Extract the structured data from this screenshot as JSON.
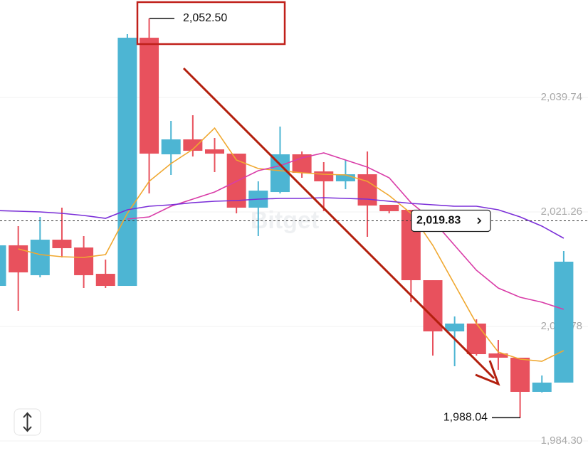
{
  "chart_data": {
    "type": "candlestick",
    "watermark": "Bitget",
    "up_color": "#4db5d3",
    "down_color": "#e8515d",
    "ylim": [
      1982.92,
      2055.47
    ],
    "yticks": [
      {
        "value": 2039.74,
        "label": "2,039.74"
      },
      {
        "value": 2021.26,
        "label": "2,021.26"
      },
      {
        "value": 2002.78,
        "label": "2,002.78"
      },
      {
        "value": 1984.3,
        "label": "1,984.30"
      }
    ],
    "grid": true,
    "open": [
      2009.32,
      2015.87,
      2011.05,
      2016.78,
      2015.52,
      2011.27,
      2009.32,
      2049.38,
      2030.56,
      2032.97,
      2031.36,
      2030.67,
      2021.95,
      2024.47,
      2030.56,
      2027.8,
      2026.2,
      2027.34,
      2022.41,
      2021.6,
      2010.24,
      2001.98,
      2003.24,
      1998.42,
      1997.73,
      1992.22,
      1993.71
    ],
    "high": [
      2017.01,
      2018.96,
      2020.46,
      2021.95,
      2017.36,
      2013.57,
      2049.96,
      2052.5,
      2035.95,
      2036.87,
      2033.2,
      2030.67,
      2026.2,
      2035.03,
      2031.02,
      2029.3,
      2029.64,
      2031.02,
      2022.41,
      2021.6,
      2010.24,
      2004.39,
      2003.93,
      2000.6,
      1997.73,
      1994.86,
      2014.95
    ],
    "low": [
      2005.88,
      2005.31,
      2010.7,
      2013.91,
      2008.98,
      2008.98,
      2009.32,
      2024.24,
      2027.23,
      2030.21,
      2027.69,
      2021.03,
      2017.36,
      2024.24,
      2026.77,
      2021.38,
      2024.93,
      2017.24,
      2021.03,
      2006.68,
      1998.07,
      1996.35,
      1998.07,
      1995.78,
      1988.04,
      1992.11,
      1993.71
    ],
    "close": [
      2015.87,
      2011.5,
      2016.78,
      2015.41,
      2011.05,
      2009.32,
      2049.38,
      2030.67,
      2032.97,
      2031.13,
      2030.67,
      2021.95,
      2024.7,
      2030.56,
      2027.57,
      2026.2,
      2027.34,
      2022.29,
      2021.38,
      2010.24,
      2001.98,
      2003.24,
      1998.3,
      1997.73,
      1992.22,
      1993.71,
      2013.23
    ],
    "lines": [
      {
        "color": "#f0a830",
        "values": [
          null,
          2015.29,
          2014.37,
          2014.03,
          2013.91,
          2014.37,
          2021.03,
          2026.2,
          2029.07,
          2031.36,
          2034.8,
          2029.64,
          2028.26,
          2027.92,
          2027.57,
          2027.34,
          2027.23,
          2026.2,
          2023.9,
          2021.03,
          2015.87,
          2009.55,
          2003.24,
          1998.65,
          1997.5,
          1997.16,
          1998.88
        ]
      },
      {
        "color": "#d93da8",
        "values": [
          null,
          null,
          null,
          null,
          null,
          null,
          2020.11,
          2020.46,
          2022.18,
          2023.33,
          2024.47,
          2026.2,
          2027.92,
          2028.72,
          2029.98,
          2030.79,
          2029.64,
          2028.49,
          2026.77,
          2022.75,
          2019.88,
          2015.87,
          2011.85,
          2008.98,
          2007.49,
          2006.68,
          2005.54
        ]
      },
      {
        "color": "#7b2fd8",
        "values": [
          2021.49,
          2021.38,
          2021.26,
          2021.03,
          2020.69,
          2020.23,
          2021.6,
          2022.18,
          2022.41,
          2022.75,
          2022.98,
          2023.1,
          2023.33,
          2023.44,
          2023.44,
          2023.56,
          2023.44,
          2023.33,
          2022.98,
          2022.64,
          2022.41,
          2022.18,
          2022.18,
          2021.6,
          2020.46,
          2018.96,
          2017.01
        ]
      }
    ],
    "annotations": [
      {
        "value": 2052.5,
        "label": "2,052.50"
      },
      {
        "value": 1988.04,
        "label": "1,988.04"
      }
    ],
    "current_price": {
      "value": 2019.83,
      "label": "2,019.83"
    }
  }
}
